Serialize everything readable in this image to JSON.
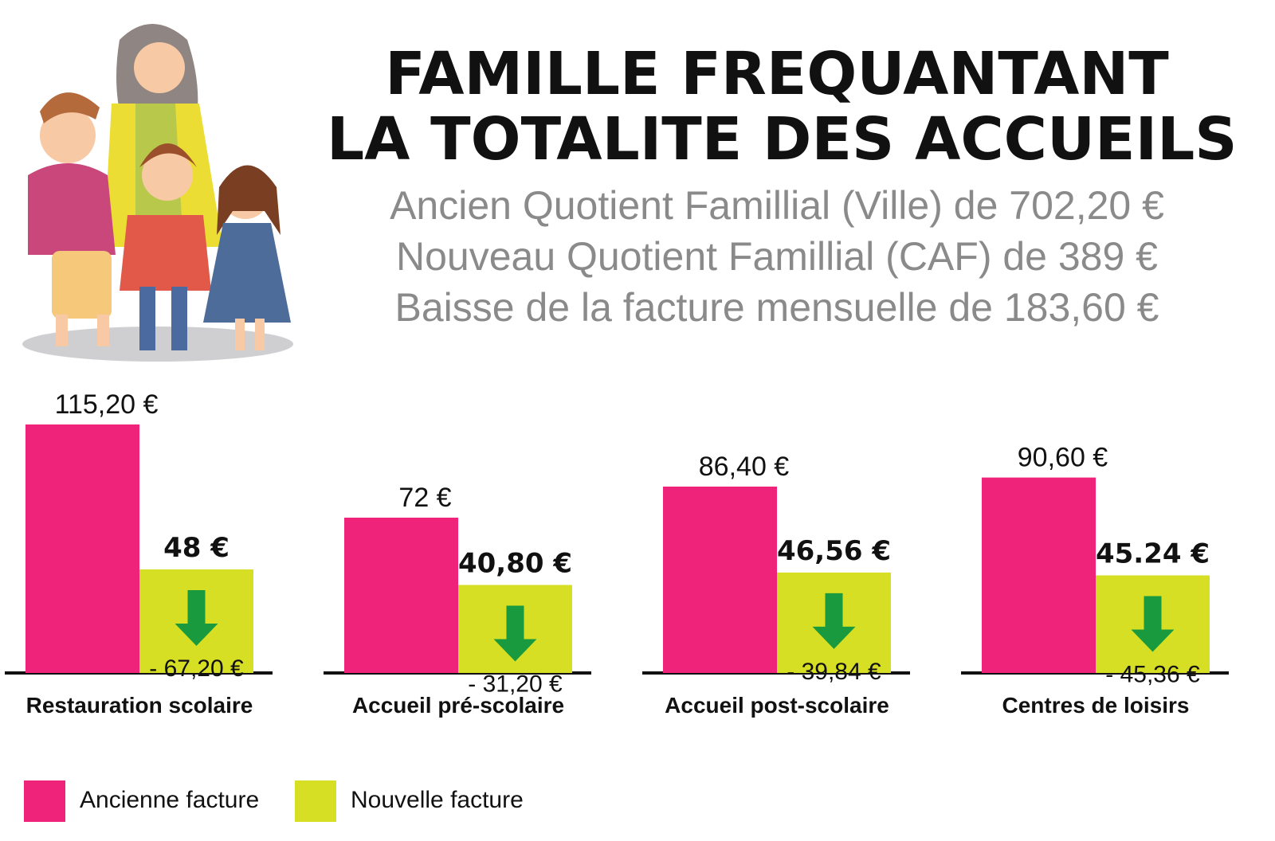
{
  "title": {
    "line1": "FAMILLE FREQUANTANT",
    "line2": "LA TOTALITE DES ACCUEILS"
  },
  "subtitles": [
    "Ancien Quotient Famillial (Ville) de 702,20 €",
    "Nouveau Quotient Famillial (CAF) de 389 €",
    "Baisse de la facture mensuelle de 183,60 €"
  ],
  "illustration": {
    "icon": "family-illustration"
  },
  "colors": {
    "ancienne": "#ee2379",
    "nouvelle": "#d6df23",
    "arrow": "#1a9a3f",
    "baseline": "#111111"
  },
  "chart_data": {
    "type": "bar",
    "categories": [
      "Restauration scolaire",
      "Accueil pré-scolaire",
      "Accueil post-scolaire",
      "Centres de loisirs"
    ],
    "series": [
      {
        "name": "Ancienne facture",
        "values": [
          115.2,
          72,
          86.4,
          90.6
        ]
      },
      {
        "name": "Nouvelle facture",
        "values": [
          48,
          40.8,
          46.56,
          45.24
        ]
      }
    ],
    "value_labels": {
      "ancienne": [
        "115,20 €",
        "72 €",
        "86,40 €",
        "90,60 €"
      ],
      "nouvelle": [
        "48 €",
        "40,80 €",
        "46,56 €",
        "45.24 €"
      ]
    },
    "reductions": [
      "- 67,20 €",
      "- 31,20 €",
      "- 39,84 €",
      "- 45,36 €"
    ],
    "legend": [
      "Ancienne facture",
      "Nouvelle facture"
    ],
    "legend_position": "bottom-left",
    "grid": false
  }
}
